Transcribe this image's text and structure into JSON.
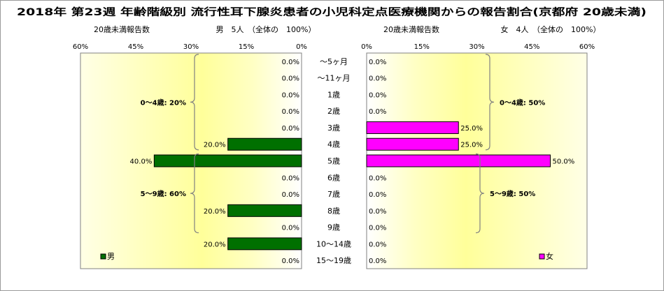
{
  "chart_data": {
    "type": "bar",
    "orientation": "horizontal-butterfly",
    "title": "2018年 第23週 年齢階級別 流行性耳下腺炎患者の小児科定点医療機関からの報告割合(京都府 20歳未満)",
    "categories": [
      "～5ヶ月",
      "～11ヶ月",
      "1歳",
      "2歳",
      "3歳",
      "4歳",
      "5歳",
      "6歳",
      "7歳",
      "8歳",
      "9歳",
      "10～14歳",
      "15～19歳"
    ],
    "xlim": [
      0,
      60
    ],
    "tick_labels": [
      "60%",
      "45%",
      "30%",
      "15%",
      "0%"
    ],
    "tick_labels_right": [
      "0%",
      "15%",
      "30%",
      "45%",
      "60%"
    ],
    "grid": false,
    "panels": [
      {
        "side": "left",
        "series_name": "男",
        "subheader_count": "20歳未満報告数",
        "subheader_total": "男　5人　（全体の　100%）",
        "color": "#007000",
        "values": [
          0,
          0,
          0,
          0,
          0,
          20,
          40,
          0,
          0,
          20,
          0,
          20,
          0
        ],
        "value_labels": [
          "0.0%",
          "0.0%",
          "0.0%",
          "0.0%",
          "0.0%",
          "20.0%",
          "40.0%",
          "0.0%",
          "0.0%",
          "20.0%",
          "0.0%",
          "20.0%",
          "0.0%"
        ],
        "brackets": [
          {
            "label": "0～4歳: 20%",
            "from": 0,
            "to": 5
          },
          {
            "label": "5～9歳: 60%",
            "from": 6,
            "to": 10
          }
        ]
      },
      {
        "side": "right",
        "series_name": "女",
        "subheader_count": "20歳未満報告数",
        "subheader_total": "女　4人　（全体の　100%）",
        "color": "#ff00ff",
        "values": [
          0,
          0,
          0,
          0,
          25,
          25,
          50,
          0,
          0,
          0,
          0,
          0,
          0
        ],
        "value_labels": [
          "0.0%",
          "0.0%",
          "0.0%",
          "0.0%",
          "25.0%",
          "25.0%",
          "50.0%",
          "0.0%",
          "0.0%",
          "0.0%",
          "0.0%",
          "0.0%",
          "0.0%"
        ],
        "brackets": [
          {
            "label": "0～4歳: 50%",
            "from": 0,
            "to": 5
          },
          {
            "label": "5～9歳: 50%",
            "from": 6,
            "to": 10
          }
        ]
      }
    ]
  }
}
